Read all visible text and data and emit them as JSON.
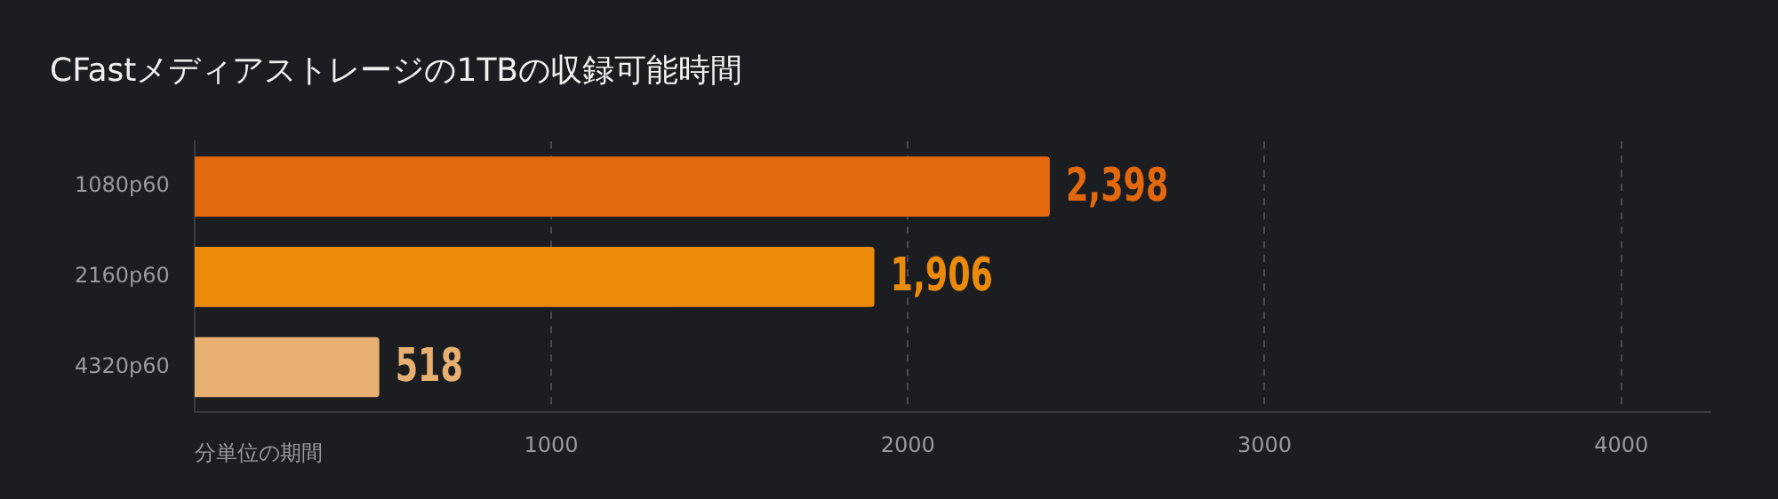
{
  "chart_data": {
    "type": "bar",
    "orientation": "horizontal",
    "title": "CFastメディアストレージの1TBの収録可能時間",
    "xlabel": "分単位の期間",
    "categories": [
      "1080p60",
      "2160p60",
      "4320p60"
    ],
    "values": [
      2398,
      1906,
      518
    ],
    "colors": [
      "#e2680e",
      "#ec8a0a",
      "#e8b070"
    ],
    "xlim": [
      0,
      4250
    ],
    "xticks": [
      1000,
      2000,
      3000,
      4000
    ],
    "grid": "x",
    "value_labels": [
      "2,398",
      "1,906",
      "518"
    ],
    "legend": false
  }
}
